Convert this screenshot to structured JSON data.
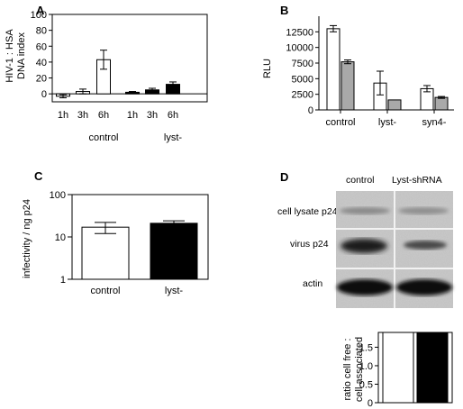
{
  "panels": {
    "A": {
      "letter": "A"
    },
    "B": {
      "letter": "B"
    },
    "C": {
      "letter": "C"
    },
    "D": {
      "letter": "D"
    }
  },
  "chart_data": [
    {
      "id": "A",
      "type": "bar",
      "ylabel": [
        "HIV-1 : HSA",
        "DNA index"
      ],
      "ylim": [
        -10,
        100
      ],
      "yticks": [
        0,
        20,
        40,
        60,
        80,
        100
      ],
      "categories": [
        "1h",
        "3h",
        "6h",
        "1h",
        "3h",
        "6h"
      ],
      "groups": [
        "control",
        "lyst-"
      ],
      "values": [
        -3,
        3,
        43,
        2,
        5,
        12
      ],
      "errors": [
        2,
        3,
        12,
        1,
        2,
        3
      ],
      "fills": [
        "#ffffff",
        "#ffffff",
        "#ffffff",
        "#000000",
        "#000000",
        "#000000"
      ]
    },
    {
      "id": "B",
      "type": "bar",
      "ylabel": "RLU",
      "ylim": [
        0,
        15000
      ],
      "yticks": [
        0,
        2500,
        5000,
        7500,
        10000,
        12500
      ],
      "categories": [
        "control",
        "lyst-",
        "syn4-"
      ],
      "series": [
        {
          "color": "#ffffff",
          "values": [
            13000,
            4300,
            3400
          ],
          "errors": [
            500,
            1900,
            500
          ]
        },
        {
          "color": "#a9a9a9",
          "values": [
            7700,
            1600,
            2000
          ],
          "errors": [
            300,
            0,
            150
          ]
        }
      ]
    },
    {
      "id": "C",
      "type": "bar",
      "ylabel": "infectivity / ng p24",
      "scale": "log",
      "ylim": [
        1,
        100
      ],
      "yticks": [
        1,
        10,
        100
      ],
      "categories": [
        "control",
        "lyst-"
      ],
      "values": [
        17,
        21
      ],
      "errors_low": [
        12,
        19
      ],
      "errors_high": [
        22,
        24
      ],
      "fills": [
        "#ffffff",
        "#000000"
      ]
    },
    {
      "id": "D",
      "type": "bar",
      "ylabel": [
        "ratio cell free :",
        "cell associated"
      ],
      "ylim": [
        0,
        1.9
      ],
      "yticks": [
        "0",
        "0.5",
        "1.0",
        "1.5"
      ],
      "tick_values": [
        0,
        0.5,
        1.0,
        1.5
      ],
      "values": [
        1.9,
        1.9
      ],
      "fills": [
        "#ffffff",
        "#000000"
      ]
    }
  ],
  "blot": {
    "columns": [
      "control",
      "Lyst-shRNA"
    ],
    "rows": [
      "cell lysate p24",
      "virus p24",
      "actin"
    ]
  }
}
